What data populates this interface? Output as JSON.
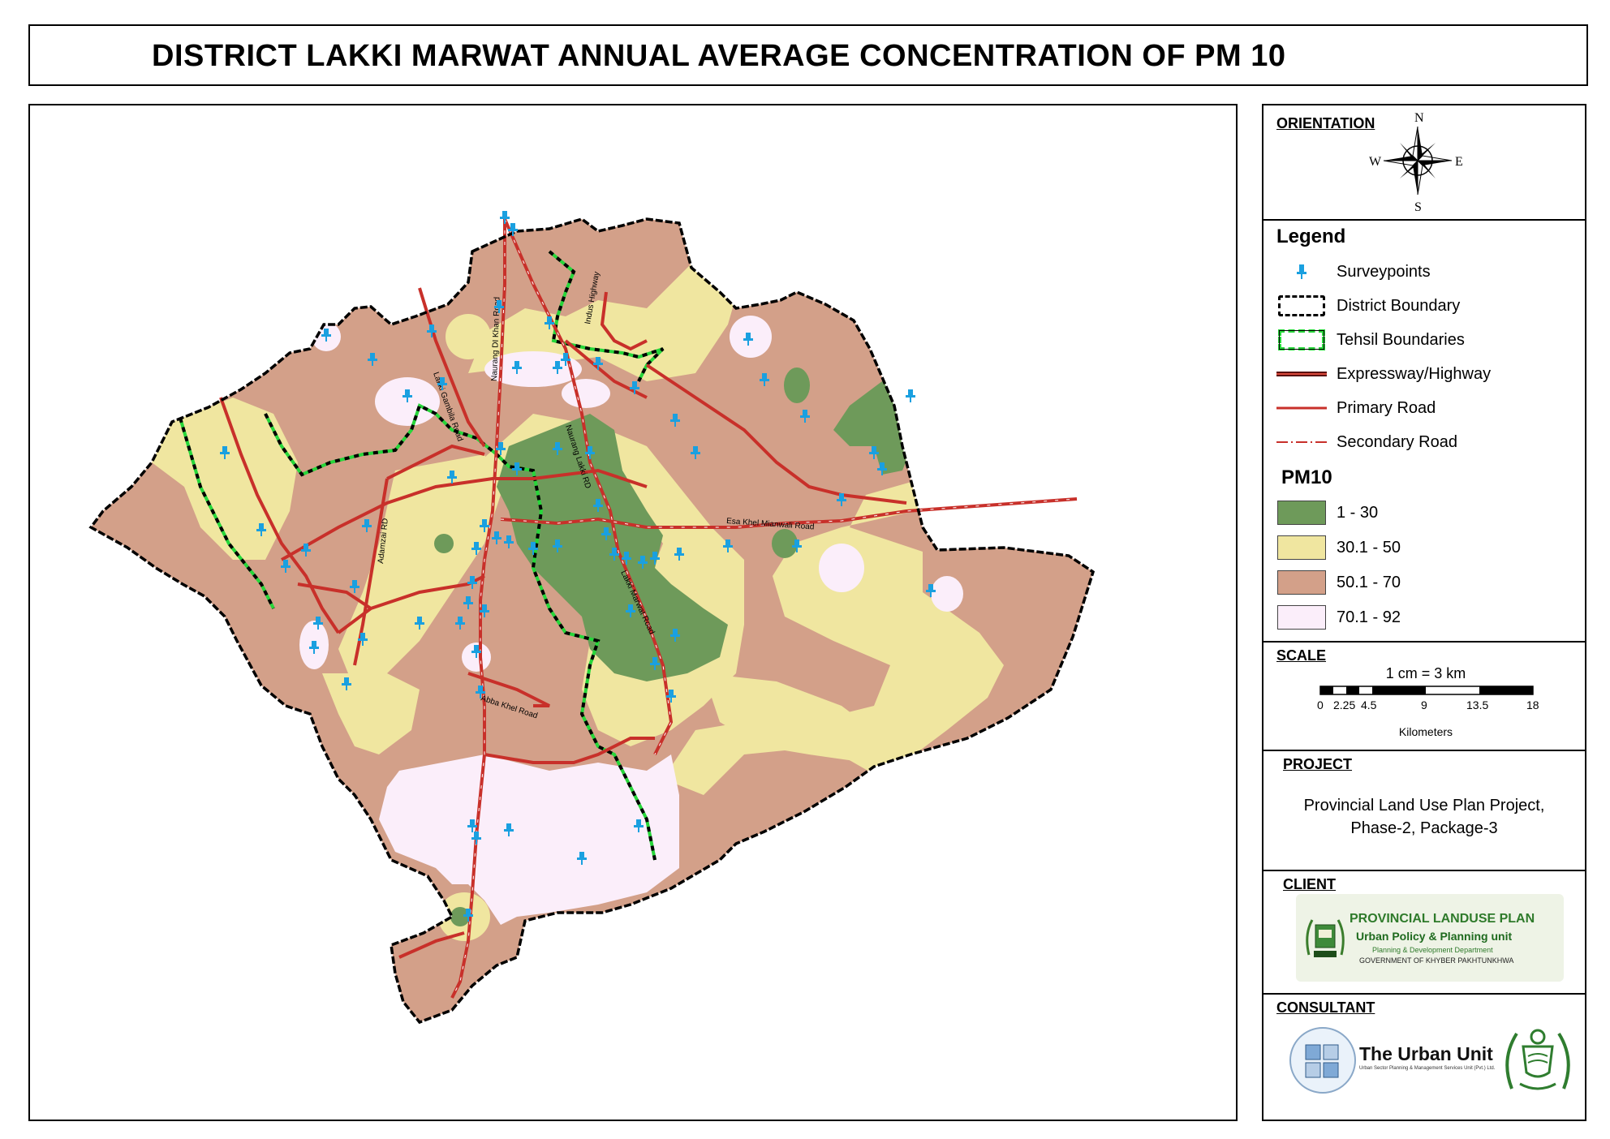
{
  "title": "DISTRICT LAKKI MARWAT ANNUAL AVERAGE  CONCENTRATION OF PM 10",
  "map": {
    "road_labels": {
      "naurang_di_khan": "Naurang DI Khan Road",
      "indus_highway": "Indus Highway",
      "lakki_gambila": "Lakki Gambila Road",
      "naurang_lakki": "Naurang Lakki RD",
      "adamzai": "Adamzai RD",
      "esa_khel_mianwali": "Esa Khel Mianwali Road",
      "lakki_marwat": "Lakki Marwat Road",
      "ghazni_khel": "Ghazi Khel Road",
      "abba_khel": "Abba Khel Road"
    }
  },
  "orientation": {
    "title": "ORIENTATION",
    "north": "N",
    "south": "S",
    "east": "E",
    "west": "W",
    "icon": "compass-rose-icon"
  },
  "legend": {
    "title": "Legend",
    "items": [
      {
        "label": "Surveypoints",
        "icon": "survey-pin-icon"
      },
      {
        "label": "District Boundary",
        "icon": "district-boundary-line"
      },
      {
        "label": "Tehsil Boundaries",
        "icon": "tehsil-boundary-line"
      },
      {
        "label": "Expressway/Highway",
        "icon": "highway-line"
      },
      {
        "label": "Primary Road",
        "icon": "primary-road-line"
      },
      {
        "label": "Secondary Road",
        "icon": "secondary-road-line"
      }
    ],
    "pm10_title": "PM10",
    "classes": [
      {
        "label": "1 - 30",
        "color": "#6e9a5a"
      },
      {
        "label": "30.1 - 50",
        "color": "#f0e6a0"
      },
      {
        "label": "50.1 - 70",
        "color": "#d3a089"
      },
      {
        "label": "70.1 - 92",
        "color": "#fbeefa"
      }
    ]
  },
  "scale": {
    "title": "SCALE",
    "ratio": "1 cm = 3 km",
    "ticks": [
      "0",
      "2.25",
      "4.5",
      "9",
      "13.5",
      "18"
    ],
    "unit": "Kilometers"
  },
  "project": {
    "title": "PROJECT",
    "line1": "Provincial Land Use Plan Project,",
    "line2": "Phase-2, Package-3"
  },
  "client": {
    "title": "CLIENT",
    "org": "PROVINCIAL  LANDUSE PLAN",
    "unit": "Urban Policy & Planning unit",
    "dept": "Planning & Development Department",
    "gov": "GOVERNMENT OF KHYBER PAKHTUNKHWA"
  },
  "consultant": {
    "title": "CONSULTANT",
    "name": "The Urban Unit",
    "subtitle": "Urban Sector Planning & Management Services Unit (Pvt.) Ltd."
  },
  "colors": {
    "green": "#6e9a5a",
    "yellow": "#f0e6a0",
    "brown": "#d3a089",
    "pink": "#fbeefa",
    "road": "#c8302a",
    "survey": "#1aa0e0",
    "tehsil": "#27d63a"
  }
}
